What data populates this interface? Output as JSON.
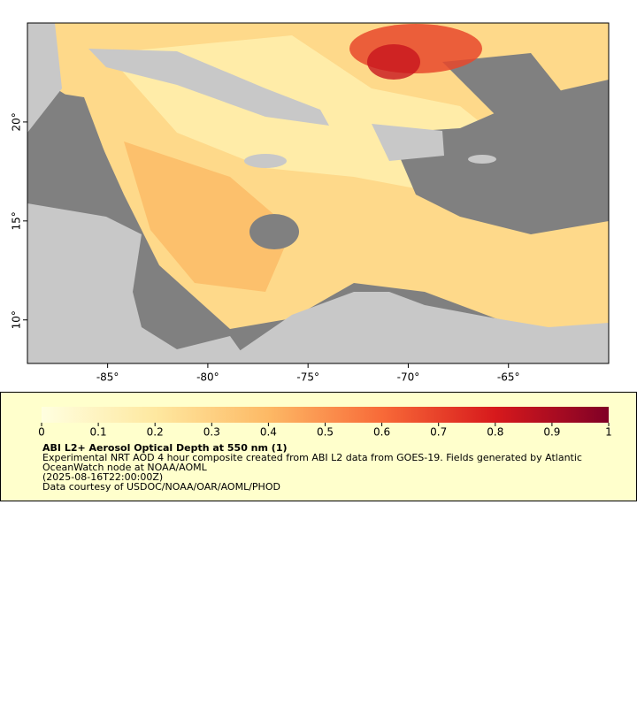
{
  "map": {
    "xlim": [
      -89,
      -60
    ],
    "ylim": [
      7.8,
      25
    ],
    "xticks": [
      {
        "value": -85,
        "label": "-85°"
      },
      {
        "value": -80,
        "label": "-80°"
      },
      {
        "value": -75,
        "label": "-75°"
      },
      {
        "value": -70,
        "label": "-70°"
      },
      {
        "value": -65,
        "label": "-65°"
      }
    ],
    "yticks": [
      {
        "value": 10,
        "label": "10°"
      },
      {
        "value": 15,
        "label": "15°"
      },
      {
        "value": 20,
        "label": "20°"
      }
    ]
  },
  "colorbar": {
    "range": [
      0,
      1
    ],
    "ticks": [
      0,
      0.1,
      0.2,
      0.3,
      0.4,
      0.5,
      0.6,
      0.7,
      0.8,
      0.9,
      1
    ]
  },
  "legend": {
    "title": "ABI L2+ Aerosol Optical Depth at 550 nm (1)",
    "lines": [
      "Experimental NRT AOD 4 hour composite created from ABI L2 data from GOES-19. Fields generated by Atlantic",
      "OceanWatch node at NOAA/AOML",
      "(2025-08-16T22:00:00Z)",
      "Data courtesy of USDOC/NOAA/OAR/AOML/PHOD"
    ]
  }
}
